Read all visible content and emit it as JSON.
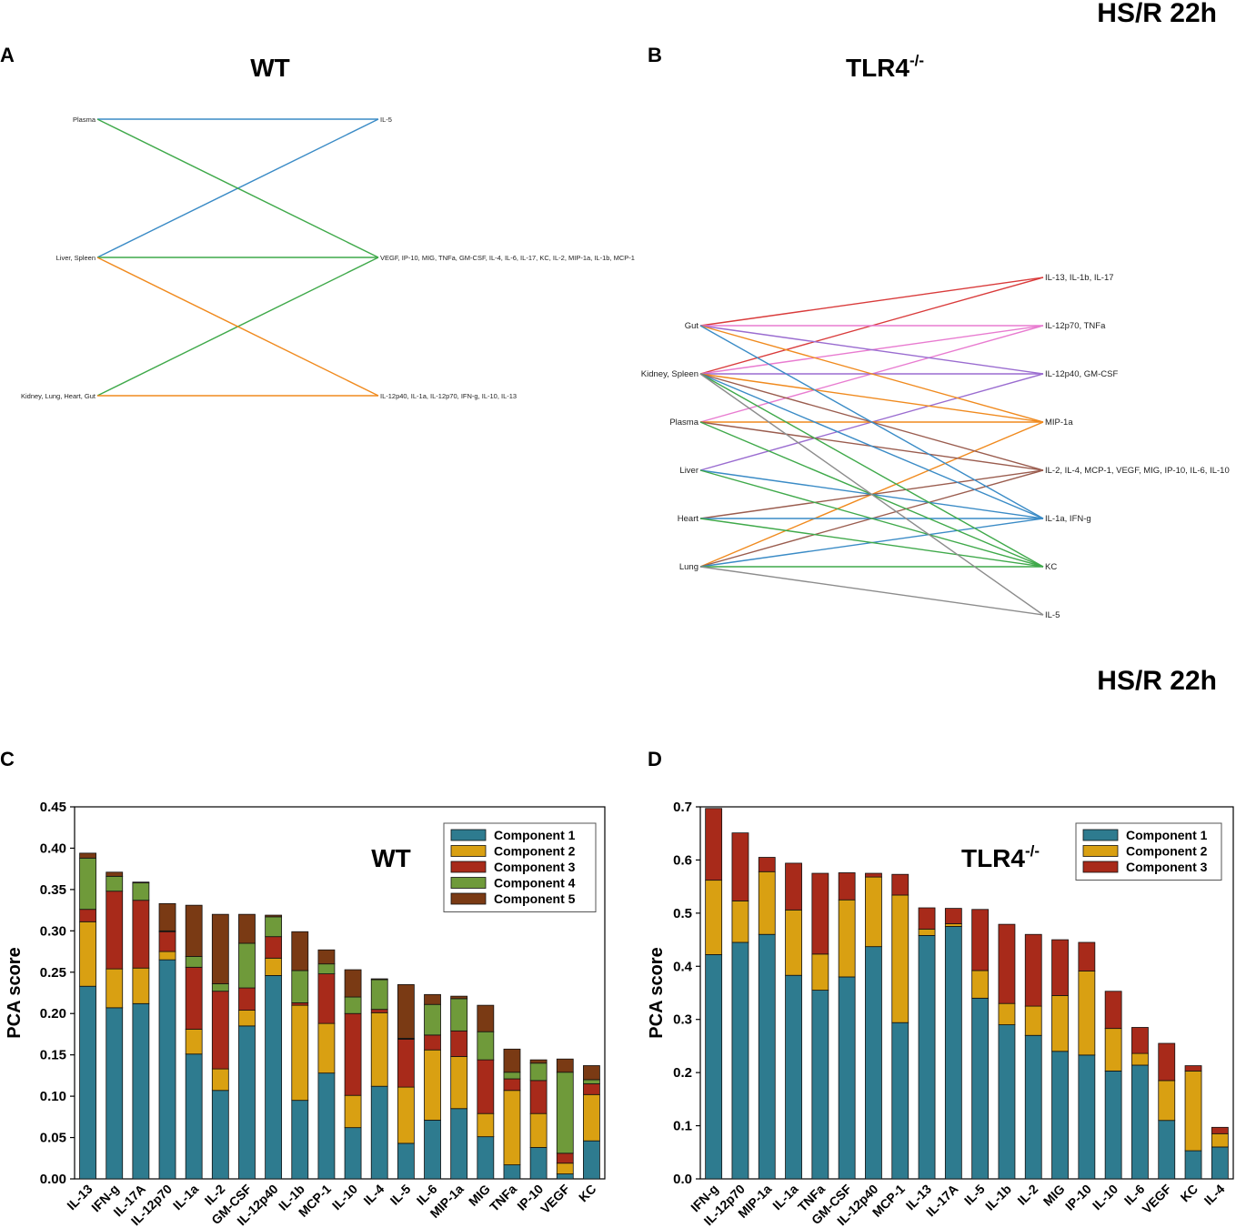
{
  "colors": {
    "c1": "#2e7b8f",
    "c2": "#d9a012",
    "c3": "#a82a1a",
    "c4": "#6f9a3a",
    "c5": "#7a3a14",
    "blue": "#3a8bc6",
    "green": "#3fa94a",
    "orange": "#f08a1e",
    "red": "#d93b3b",
    "pink": "#e87bd0",
    "purple": "#9a6cd0",
    "brown": "#9a5c4e",
    "gray": "#8c8c8c"
  },
  "headers": {
    "top": "HS/R 22h",
    "middle": "HS/R 22h"
  },
  "panels": {
    "A": {
      "letter": "A",
      "title": "WT"
    },
    "B": {
      "letter": "B",
      "title_main": "TLR4",
      "title_sup": "-/-"
    },
    "C": {
      "letter": "C"
    },
    "D": {
      "letter": "D"
    }
  },
  "network_A": {
    "left": [
      "Plasma",
      "Liver, Spleen",
      "Kidney, Lung, Heart, Gut"
    ],
    "right": [
      "IL-5",
      "VEGF, IP-10, MIG, TNFa, GM-CSF, IL-4, IL-6, IL-17, KC, IL-2, MIP-1a, IL-1b, MCP-1",
      "IL-12p40, IL-1a, IL-12p70, IFN-g, IL-10, IL-13"
    ],
    "edges": [
      [
        0,
        0,
        "blue"
      ],
      [
        1,
        0,
        "blue"
      ],
      [
        0,
        1,
        "green"
      ],
      [
        1,
        1,
        "green"
      ],
      [
        2,
        1,
        "green"
      ],
      [
        1,
        2,
        "orange"
      ],
      [
        2,
        2,
        "orange"
      ]
    ]
  },
  "network_B": {
    "left": [
      "Gut",
      "Kidney, Spleen",
      "Plasma",
      "Liver",
      "Heart",
      "Lung"
    ],
    "right": [
      "IL-13, IL-1b, IL-17",
      "IL-12p70, TNFa",
      "IL-12p40, GM-CSF",
      "MIP-1a",
      "IL-2, IL-4, MCP-1, VEGF, MIG, IP-10, IL-6, IL-10",
      "IL-1a, IFN-g",
      "KC",
      "IL-5"
    ],
    "edges": [
      [
        0,
        0,
        "red"
      ],
      [
        1,
        0,
        "red"
      ],
      [
        0,
        1,
        "pink"
      ],
      [
        1,
        1,
        "pink"
      ],
      [
        2,
        1,
        "pink"
      ],
      [
        0,
        2,
        "purple"
      ],
      [
        1,
        2,
        "purple"
      ],
      [
        3,
        2,
        "purple"
      ],
      [
        0,
        3,
        "orange"
      ],
      [
        1,
        3,
        "orange"
      ],
      [
        2,
        3,
        "orange"
      ],
      [
        5,
        3,
        "orange"
      ],
      [
        1,
        4,
        "brown"
      ],
      [
        2,
        4,
        "brown"
      ],
      [
        4,
        4,
        "brown"
      ],
      [
        5,
        4,
        "brown"
      ],
      [
        0,
        5,
        "blue"
      ],
      [
        1,
        5,
        "blue"
      ],
      [
        3,
        5,
        "blue"
      ],
      [
        4,
        5,
        "blue"
      ],
      [
        5,
        5,
        "blue"
      ],
      [
        1,
        6,
        "green"
      ],
      [
        2,
        6,
        "green"
      ],
      [
        3,
        6,
        "green"
      ],
      [
        4,
        6,
        "green"
      ],
      [
        5,
        6,
        "green"
      ],
      [
        1,
        7,
        "gray"
      ],
      [
        5,
        7,
        "gray"
      ]
    ]
  },
  "chart_data": [
    {
      "type": "bar",
      "stacked": true,
      "panel": "C",
      "title": "WT",
      "xlabel": "",
      "ylabel": "PCA score",
      "ylim": [
        0,
        0.45
      ],
      "yticks": [
        "0.00",
        "0.05",
        "0.10",
        "0.15",
        "0.20",
        "0.25",
        "0.30",
        "0.35",
        "0.40",
        "0.45"
      ],
      "legend_position": "top-right",
      "categories": [
        "IL-13",
        "IFN-g",
        "IL-17A",
        "IL-12p70",
        "IL-1a",
        "IL-2",
        "GM-CSF",
        "IL-12p40",
        "IL-1b",
        "MCP-1",
        "IL-10",
        "IL-4",
        "IL-5",
        "IL-6",
        "MIP-1a",
        "MIG",
        "TNFa",
        "IP-10",
        "VEGF",
        "KC"
      ],
      "series": [
        {
          "name": "Component 1",
          "color": "c1",
          "values": [
            0.233,
            0.207,
            0.212,
            0.265,
            0.151,
            0.107,
            0.185,
            0.246,
            0.095,
            0.128,
            0.062,
            0.112,
            0.043,
            0.071,
            0.085,
            0.051,
            0.017,
            0.038,
            0.006,
            0.046
          ]
        },
        {
          "name": "Component 2",
          "color": "c2",
          "values": [
            0.078,
            0.047,
            0.043,
            0.01,
            0.03,
            0.026,
            0.019,
            0.021,
            0.115,
            0.06,
            0.039,
            0.089,
            0.068,
            0.085,
            0.063,
            0.028,
            0.09,
            0.041,
            0.013,
            0.056
          ]
        },
        {
          "name": "Component 3",
          "color": "c3",
          "values": [
            0.015,
            0.094,
            0.082,
            0.024,
            0.075,
            0.094,
            0.027,
            0.026,
            0.003,
            0.06,
            0.099,
            0.004,
            0.058,
            0.018,
            0.031,
            0.065,
            0.014,
            0.04,
            0.012,
            0.013
          ]
        },
        {
          "name": "Component 4",
          "color": "c4",
          "values": [
            0.062,
            0.018,
            0.021,
            0.001,
            0.013,
            0.009,
            0.054,
            0.024,
            0.039,
            0.012,
            0.02,
            0.036,
            0.001,
            0.037,
            0.039,
            0.034,
            0.008,
            0.021,
            0.098,
            0.005
          ]
        },
        {
          "name": "Component 5",
          "color": "c5",
          "values": [
            0.006,
            0.005,
            0.001,
            0.033,
            0.062,
            0.084,
            0.035,
            0.002,
            0.047,
            0.017,
            0.033,
            0.001,
            0.065,
            0.012,
            0.003,
            0.032,
            0.028,
            0.004,
            0.016,
            0.017
          ]
        }
      ]
    },
    {
      "type": "bar",
      "stacked": true,
      "panel": "D",
      "title_main": "TLR4",
      "title_sup": "-/-",
      "xlabel": "",
      "ylabel": "PCA score",
      "ylim": [
        0,
        0.7
      ],
      "yticks": [
        "0.0",
        "0.1",
        "0.2",
        "0.3",
        "0.4",
        "0.5",
        "0.6",
        "0.7"
      ],
      "legend_position": "top-right",
      "categories": [
        "IFN-g",
        "IL-12p70",
        "MIP-1a",
        "IL-1a",
        "TNFa",
        "GM-CSF",
        "IL-12p40",
        "MCP-1",
        "IL-13",
        "IL-17A",
        "IL-5",
        "IL-1b",
        "IL-2",
        "MIG",
        "IP-10",
        "IL-10",
        "IL-6",
        "VEGF",
        "KC",
        "IL-4"
      ],
      "series": [
        {
          "name": "Component 1",
          "color": "c1",
          "values": [
            0.422,
            0.445,
            0.46,
            0.383,
            0.355,
            0.38,
            0.437,
            0.294,
            0.458,
            0.475,
            0.34,
            0.29,
            0.27,
            0.24,
            0.233,
            0.203,
            0.214,
            0.11,
            0.053,
            0.06
          ]
        },
        {
          "name": "Component 2",
          "color": "c2",
          "values": [
            0.14,
            0.078,
            0.118,
            0.123,
            0.068,
            0.145,
            0.131,
            0.24,
            0.012,
            0.005,
            0.052,
            0.04,
            0.055,
            0.105,
            0.158,
            0.08,
            0.022,
            0.075,
            0.15,
            0.025
          ]
        },
        {
          "name": "Component 3",
          "color": "c3",
          "values": [
            0.135,
            0.128,
            0.027,
            0.088,
            0.152,
            0.051,
            0.007,
            0.039,
            0.04,
            0.029,
            0.115,
            0.149,
            0.135,
            0.105,
            0.054,
            0.07,
            0.049,
            0.07,
            0.01,
            0.012
          ]
        }
      ]
    }
  ]
}
